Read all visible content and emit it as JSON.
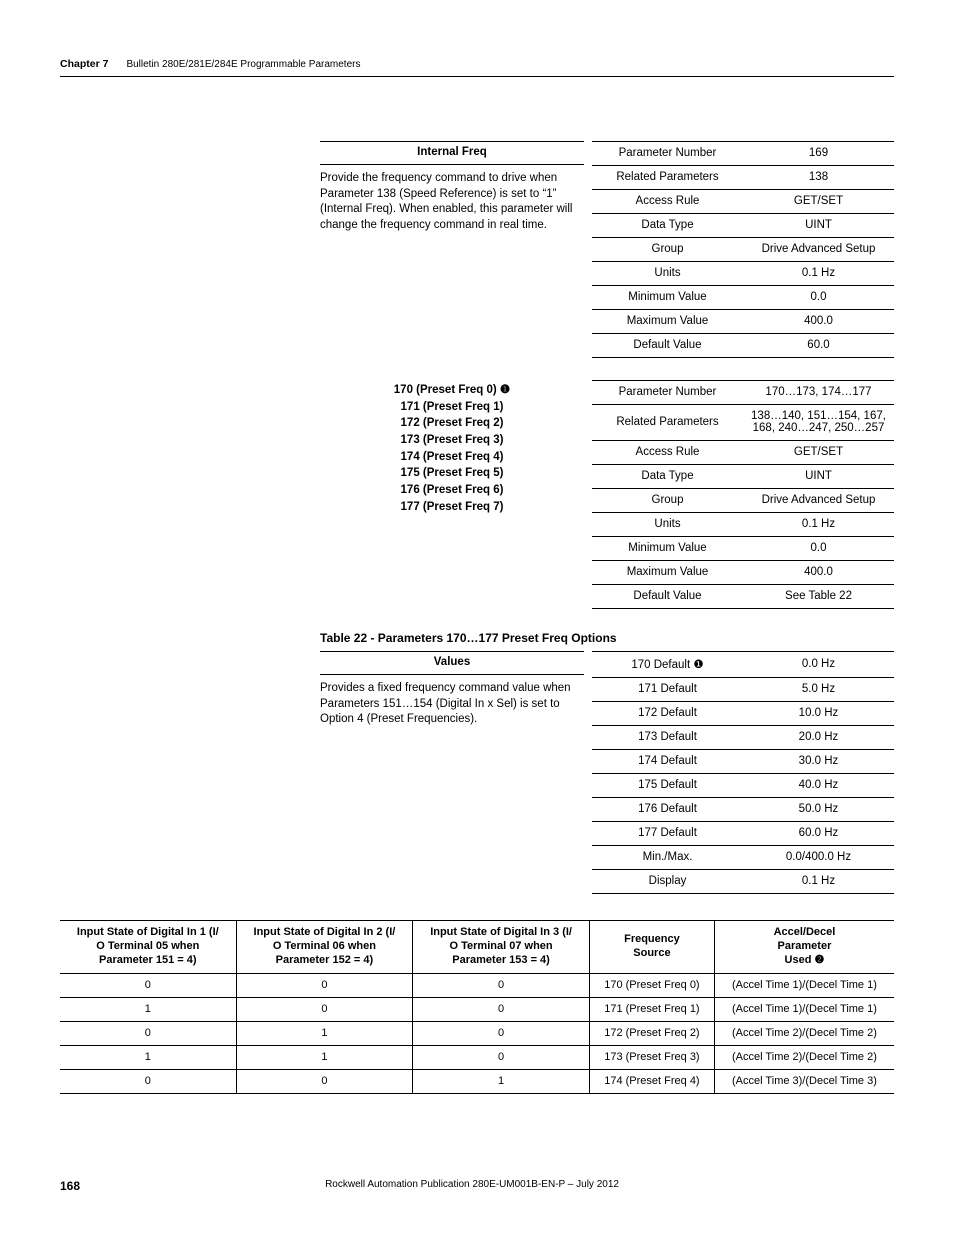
{
  "header": {
    "chapter_label": "Chapter 7",
    "chapter_title": "Bulletin 280E/281E/284E Programmable Parameters"
  },
  "param169": {
    "title": "Internal Freq",
    "desc": "Provide the frequency command to drive when Parameter 138 (Speed Reference) is set to “1” (Internal Freq). When enabled, this parameter will change the frequency command in real time.",
    "rows": [
      [
        "Parameter Number",
        "169"
      ],
      [
        "Related Parameters",
        "138"
      ],
      [
        "Access Rule",
        "GET/SET"
      ],
      [
        "Data Type",
        "UINT"
      ],
      [
        "Group",
        "Drive Advanced Setup"
      ],
      [
        "Units",
        "0.1 Hz"
      ],
      [
        "Minimum Value",
        "0.0"
      ],
      [
        "Maximum Value",
        "400.0"
      ],
      [
        "Default Value",
        "60.0"
      ]
    ]
  },
  "param170": {
    "names": [
      "170 (Preset Freq 0) ❶",
      "171 (Preset Freq 1)",
      "172 (Preset Freq 2)",
      "173 (Preset Freq 3)",
      "174 (Preset Freq 4)",
      "175 (Preset Freq 5)",
      "176 (Preset Freq 6)",
      "177 (Preset Freq 7)"
    ],
    "rows": [
      [
        "Parameter Number",
        "170…173, 174…177"
      ],
      [
        "Related Parameters",
        "138…140, 151…154, 167, 168, 240…247, 250…257"
      ],
      [
        "Access Rule",
        "GET/SET"
      ],
      [
        "Data Type",
        "UINT"
      ],
      [
        "Group",
        "Drive Advanced Setup"
      ],
      [
        "Units",
        "0.1 Hz"
      ],
      [
        "Minimum Value",
        "0.0"
      ],
      [
        "Maximum Value",
        "400.0"
      ],
      [
        "Default Value",
        "See Table 22"
      ]
    ]
  },
  "table22": {
    "caption": "Table 22 - Parameters 170…177 Preset Freq Options",
    "title": "Values",
    "desc": "Provides a fixed frequency command value when Parameters 151…154 (Digital In x Sel) is set to Option 4 (Preset Frequencies).",
    "rows": [
      [
        "170 Default ❶",
        "0.0 Hz"
      ],
      [
        "171 Default",
        "5.0 Hz"
      ],
      [
        "172 Default",
        "10.0 Hz"
      ],
      [
        "173 Default",
        "20.0 Hz"
      ],
      [
        "174 Default",
        "30.0 Hz"
      ],
      [
        "175 Default",
        "40.0 Hz"
      ],
      [
        "176 Default",
        "50.0 Hz"
      ],
      [
        "177 Default",
        "60.0 Hz"
      ],
      [
        "Min./Max.",
        "0.0/400.0 Hz"
      ],
      [
        "Display",
        "0.1 Hz"
      ]
    ]
  },
  "ioTable": {
    "headers": [
      "Input State of Digital In 1 (I/O Terminal 05 when Parameter 151 = 4)",
      "Input State of Digital In 2 (I/O Terminal 06 when Parameter 152 = 4)",
      "Input State of Digital In 3 (I/O Terminal 07 when Parameter 153 = 4)",
      "Frequency Source",
      "Accel/Decel Parameter Used ❷"
    ],
    "rows": [
      [
        "0",
        "0",
        "0",
        "170 (Preset Freq 0)",
        "(Accel Time 1)/(Decel Time 1)"
      ],
      [
        "1",
        "0",
        "0",
        "171 (Preset Freq 1)",
        "(Accel Time 1)/(Decel Time 1)"
      ],
      [
        "0",
        "1",
        "0",
        "172 (Preset Freq 2)",
        "(Accel Time 2)/(Decel Time 2)"
      ],
      [
        "1",
        "1",
        "0",
        "173 (Preset Freq 3)",
        "(Accel Time 2)/(Decel Time 2)"
      ],
      [
        "0",
        "0",
        "1",
        "174 (Preset Freq 4)",
        "(Accel Time 3)/(Decel Time 3)"
      ]
    ]
  },
  "footer": {
    "page": "168",
    "pub": "Rockwell Automation Publication 280E-UM001B-EN-P – July 2012"
  }
}
